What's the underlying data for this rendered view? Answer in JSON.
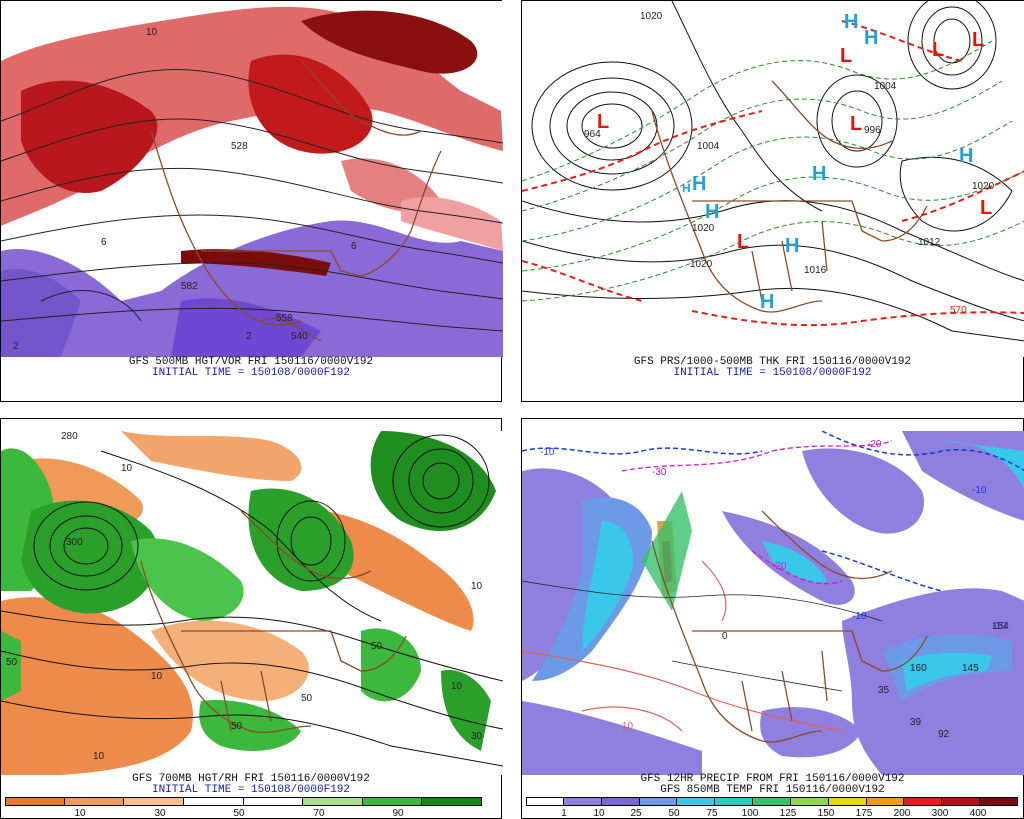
{
  "panels": {
    "tl": {
      "line1": "GFS 500MB HGT/VOR FRI 150116/0000V192",
      "line2": "INITIAL TIME = 150108/0000F192",
      "labels": [
        "582",
        "558",
        "540",
        "528",
        "2",
        "6",
        "10",
        "6",
        "2"
      ]
    },
    "tr": {
      "line1": "GFS PRS/1000-500MB THK FRI 150116/0000V192",
      "line2": "INITIAL TIME = 150108/0000F192",
      "labels": [
        "1020",
        "964",
        "1004",
        "1020",
        "1020",
        "1020",
        "996",
        "1004",
        "570",
        "1012",
        "1016"
      ],
      "centers": [
        "L",
        "L",
        "L",
        "L",
        "L",
        "L",
        "L",
        "H",
        "H",
        "H",
        "H",
        "H",
        "H",
        "H",
        "H",
        "H"
      ]
    },
    "bl": {
      "line1": "GFS 700MB HGT/RH FRI 150116/0000V192",
      "line2": "INITIAL TIME = 150108/0000F192",
      "labels": [
        "280",
        "10",
        "10",
        "10",
        "50",
        "10",
        "50",
        "50",
        "10",
        "300",
        "30",
        "50"
      ],
      "colorbar": {
        "colors": [
          "#e87a2e",
          "#f0995a",
          "#f5c08a",
          "#ffffff",
          "#ffffff",
          "#a8e08a",
          "#3cb83c",
          "#138a13"
        ],
        "ticks": [
          "10",
          "30",
          "50",
          "70",
          "90"
        ]
      }
    },
    "br": {
      "line1": "GFS 12HR PRECIP FROM FRI 150116/0000V192",
      "line2": "GFS 850MB TEMP FRI 150116/0000V192",
      "labels": [
        "-10",
        "-10",
        "-20",
        "-30",
        "-10",
        "-20",
        "-10",
        "0",
        "10",
        "35",
        "39",
        "92",
        "145",
        "154",
        "160"
      ],
      "colorbar": {
        "colors": [
          "#ffffff",
          "#8f7fde",
          "#7a66d6",
          "#6c9ae6",
          "#39c8ea",
          "#24d0c0",
          "#36c26c",
          "#8ed64a",
          "#e8d61c",
          "#f09a1c",
          "#e0201c",
          "#b4101c",
          "#7c0a12"
        ],
        "ticks": [
          "1",
          "10",
          "25",
          "50",
          "75",
          "100",
          "125",
          "150",
          "175",
          "200",
          "300",
          "400"
        ]
      }
    }
  }
}
